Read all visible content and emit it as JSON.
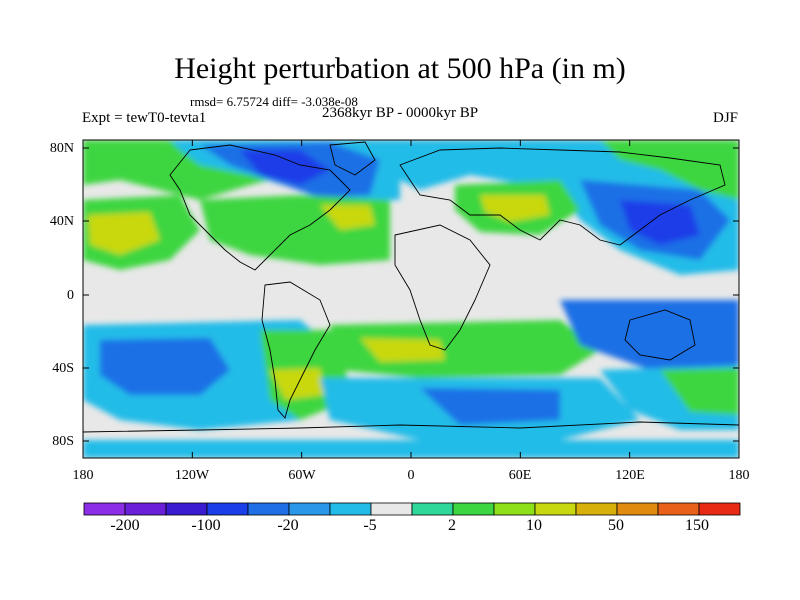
{
  "title": "Height perturbation at 500 hPa (in m)",
  "stats_line": "rmsd= 6.75724 diff= -3.038e-08",
  "period": "2368kyr BP - 0000kyr BP",
  "experiment": "Expt = tewT0-tevta1",
  "season": "DJF",
  "lat_labels": [
    "80N",
    "40N",
    "0",
    "40S",
    "80S"
  ],
  "lon_labels": [
    "180",
    "120W",
    "60W",
    "0",
    "60E",
    "120E",
    "180"
  ],
  "colorbar": {
    "colors": [
      "#8c2ee6",
      "#6a1fd8",
      "#3a1bd0",
      "#1a3ee8",
      "#1f6fe6",
      "#2a97e8",
      "#23bce8",
      "#e8e8e8",
      "#2ed89a",
      "#3cd640",
      "#8ee018",
      "#c8d810",
      "#d8b00c",
      "#e08a10",
      "#e8601a",
      "#e82a14"
    ],
    "labels": [
      "-200",
      "-100",
      "-20",
      "-5",
      "2",
      "10",
      "50",
      "150"
    ]
  },
  "map_colors": {
    "neutral": "#e8e8e8",
    "light_blue": "#23bce8",
    "mid_blue": "#1f6fe6",
    "deep_blue": "#1a3ee8",
    "light_green": "#3cd640",
    "yellow_green": "#c8d810",
    "teal": "#2ed89a"
  }
}
